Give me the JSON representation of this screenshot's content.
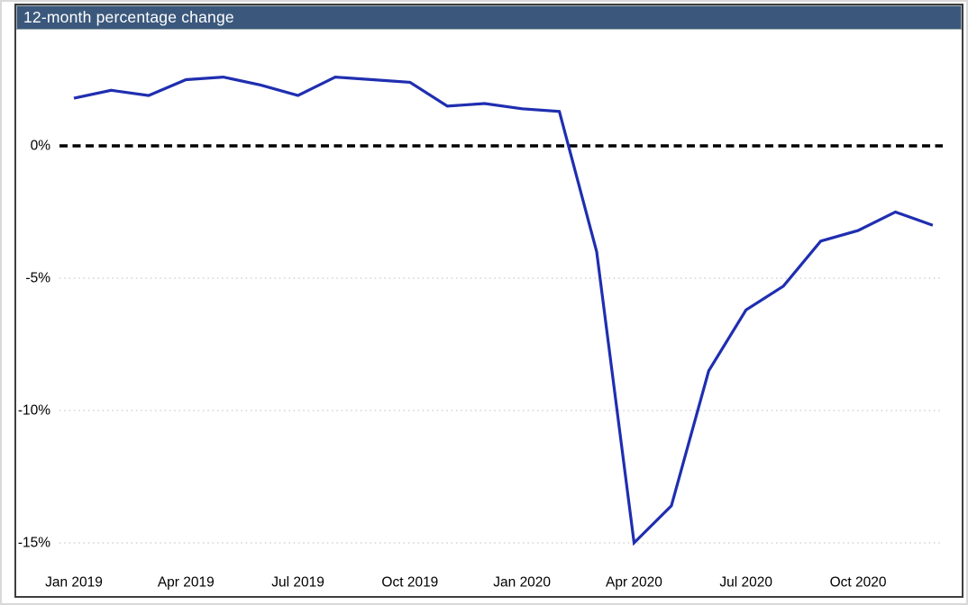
{
  "title_bar": {
    "text": "12-month percentage change",
    "bg_color": "#3b587c",
    "text_color": "#ffffff"
  },
  "chart_data": {
    "type": "line",
    "title": "12-month percentage change",
    "categories": [
      "Jan 2019",
      "Feb 2019",
      "Mar 2019",
      "Apr 2019",
      "May 2019",
      "Jun 2019",
      "Jul 2019",
      "Aug 2019",
      "Sep 2019",
      "Oct 2019",
      "Nov 2019",
      "Dec 2019",
      "Jan 2020",
      "Feb 2020",
      "Mar 2020",
      "Apr 2020",
      "May 2020",
      "Jun 2020",
      "Jul 2020",
      "Aug 2020",
      "Sep 2020",
      "Oct 2020",
      "Nov 2020",
      "Dec 2020"
    ],
    "series": [
      {
        "name": "12-month percentage change",
        "color": "#1f2eb0",
        "values": [
          1.8,
          2.1,
          1.9,
          2.5,
          2.6,
          2.3,
          1.9,
          2.6,
          2.5,
          2.4,
          1.5,
          1.6,
          1.4,
          1.3,
          -4.0,
          -15.0,
          -13.6,
          -8.5,
          -6.2,
          -5.3,
          -3.6,
          -3.2,
          -2.5,
          -3.0
        ]
      }
    ],
    "x_tick_indices": [
      0,
      3,
      6,
      9,
      12,
      15,
      18,
      21
    ],
    "x_tick_labels": [
      "Jan 2019",
      "Apr 2019",
      "Jul 2019",
      "Oct 2019",
      "Jan 2020",
      "Apr 2020",
      "Jul 2020",
      "Oct 2020"
    ],
    "y_ticks": [
      0,
      -5,
      -10,
      -15
    ],
    "y_tick_labels": [
      "0%",
      "-5%",
      "-10%",
      "-15%"
    ],
    "ylim": [
      -17.0,
      4.4
    ],
    "xlabel": "",
    "ylabel": "",
    "legend": "none",
    "grid": "horizontal dotted gridlines at -5, -10, -15; dashed black reference line at 0",
    "zero_line_color": "#000000",
    "gridline_color": "#c9c9c9",
    "tick_label_color": "#000000"
  }
}
